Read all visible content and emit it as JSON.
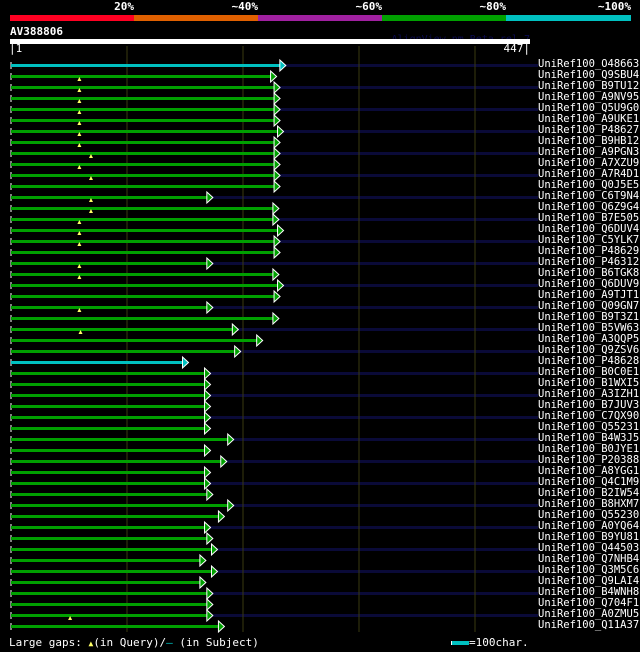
{
  "identity_scale": [
    {
      "label": "20%",
      "color": "#ff0022"
    },
    {
      "label": "~40%",
      "color": "#e06000"
    },
    {
      "label": "~60%",
      "color": "#a020a0"
    },
    {
      "label": "~80%",
      "color": "#00a000"
    },
    {
      "label": "~100%",
      "color": "#00c0c0"
    }
  ],
  "query": {
    "name": "AV388806",
    "start": "1",
    "end": "447",
    "length": 447
  },
  "version_text": "AlignView.pm Beta rel.7",
  "colors": {
    "green": "#00a000",
    "cyan": "#00c0c0",
    "navy": "#0a0a38",
    "grid": "#3a3a10",
    "gap": "#ffff66"
  },
  "hits": [
    {
      "id": "UniRef100_O48663",
      "end": 232,
      "color": "cyan"
    },
    {
      "id": "UniRef100_Q9SBU4",
      "end": 224
    },
    {
      "id": "UniRef100_B9TU12",
      "end": 227,
      "gap": 59
    },
    {
      "id": "UniRef100_A9NV95",
      "end": 227,
      "gap": 59
    },
    {
      "id": "UniRef100_Q5U9G0",
      "end": 227,
      "gap": 59
    },
    {
      "id": "UniRef100_A9UKE1",
      "end": 227,
      "gap": 59
    },
    {
      "id": "UniRef100_P48627",
      "end": 230,
      "gap": 59
    },
    {
      "id": "UniRef100_B9HB12",
      "end": 227,
      "gap": 59
    },
    {
      "id": "UniRef100_A9PGN3",
      "end": 227,
      "gap": 59
    },
    {
      "id": "UniRef100_A7XZU9",
      "end": 227,
      "gap": 69
    },
    {
      "id": "UniRef100_A7R4D1",
      "end": 227,
      "gap": 59
    },
    {
      "id": "UniRef100_Q0J5E5",
      "end": 227,
      "gap": 69
    },
    {
      "id": "UniRef100_C6T9N4",
      "end": 169
    },
    {
      "id": "UniRef100_Q6Z9G4",
      "end": 226,
      "gap": 69
    },
    {
      "id": "UniRef100_B7E505",
      "end": 226,
      "gap": 69
    },
    {
      "id": "UniRef100_Q6DUV4",
      "end": 230,
      "gap": 59
    },
    {
      "id": "UniRef100_C5YLK7",
      "end": 227,
      "gap": 59
    },
    {
      "id": "UniRef100_P48629",
      "end": 227,
      "gap": 59
    },
    {
      "id": "UniRef100_P46312",
      "end": 169
    },
    {
      "id": "UniRef100_B6TGK8",
      "end": 226,
      "gap": 59
    },
    {
      "id": "UniRef100_Q6DUV9",
      "end": 230,
      "gap": 59
    },
    {
      "id": "UniRef100_A9TJT1",
      "end": 227
    },
    {
      "id": "UniRef100_Q09GN7",
      "end": 169
    },
    {
      "id": "UniRef100_B9T3Z1",
      "end": 226,
      "gap": 59
    },
    {
      "id": "UniRef100_B5VW63",
      "end": 191
    },
    {
      "id": "UniRef100_A3QQP5",
      "end": 212,
      "gap": 60
    },
    {
      "id": "UniRef100_Q9ZSV6",
      "end": 193
    },
    {
      "id": "UniRef100_P48628",
      "end": 148,
      "color": "cyan"
    },
    {
      "id": "UniRef100_B0C0E1",
      "end": 167
    },
    {
      "id": "UniRef100_B1WXI5",
      "end": 167
    },
    {
      "id": "UniRef100_A3IZH1",
      "end": 167
    },
    {
      "id": "UniRef100_B7JUV3",
      "end": 167
    },
    {
      "id": "UniRef100_C7QX90",
      "end": 167
    },
    {
      "id": "UniRef100_Q55231",
      "end": 167
    },
    {
      "id": "UniRef100_B4W3J5",
      "end": 187
    },
    {
      "id": "UniRef100_B0JYE1",
      "end": 167
    },
    {
      "id": "UniRef100_P20388",
      "end": 181
    },
    {
      "id": "UniRef100_A8YGG1",
      "end": 167
    },
    {
      "id": "UniRef100_Q4C1M9",
      "end": 167
    },
    {
      "id": "UniRef100_B2IW54",
      "end": 169
    },
    {
      "id": "UniRef100_B8HXM7",
      "end": 187
    },
    {
      "id": "UniRef100_Q55230",
      "end": 179
    },
    {
      "id": "UniRef100_A0YQ64",
      "end": 167
    },
    {
      "id": "UniRef100_B9YU81",
      "end": 169
    },
    {
      "id": "UniRef100_Q44503",
      "end": 173
    },
    {
      "id": "UniRef100_Q7NHB4",
      "end": 163
    },
    {
      "id": "UniRef100_Q3M5C6",
      "end": 173
    },
    {
      "id": "UniRef100_Q9LAI4",
      "end": 163
    },
    {
      "id": "UniRef100_B4WNH8",
      "end": 169
    },
    {
      "id": "UniRef100_Q704F1",
      "end": 169
    },
    {
      "id": "UniRef100_A0ZMU5",
      "end": 169
    },
    {
      "id": "UniRef100_Q11A37",
      "end": 179,
      "gap": 51
    }
  ],
  "footer": {
    "large_gaps": "Large gaps:",
    "in_query": "(in Query)/",
    "in_subject": " (in Subject)",
    "query_glyph": "▲",
    "subject_glyph": "—",
    "scale": "=100char."
  }
}
